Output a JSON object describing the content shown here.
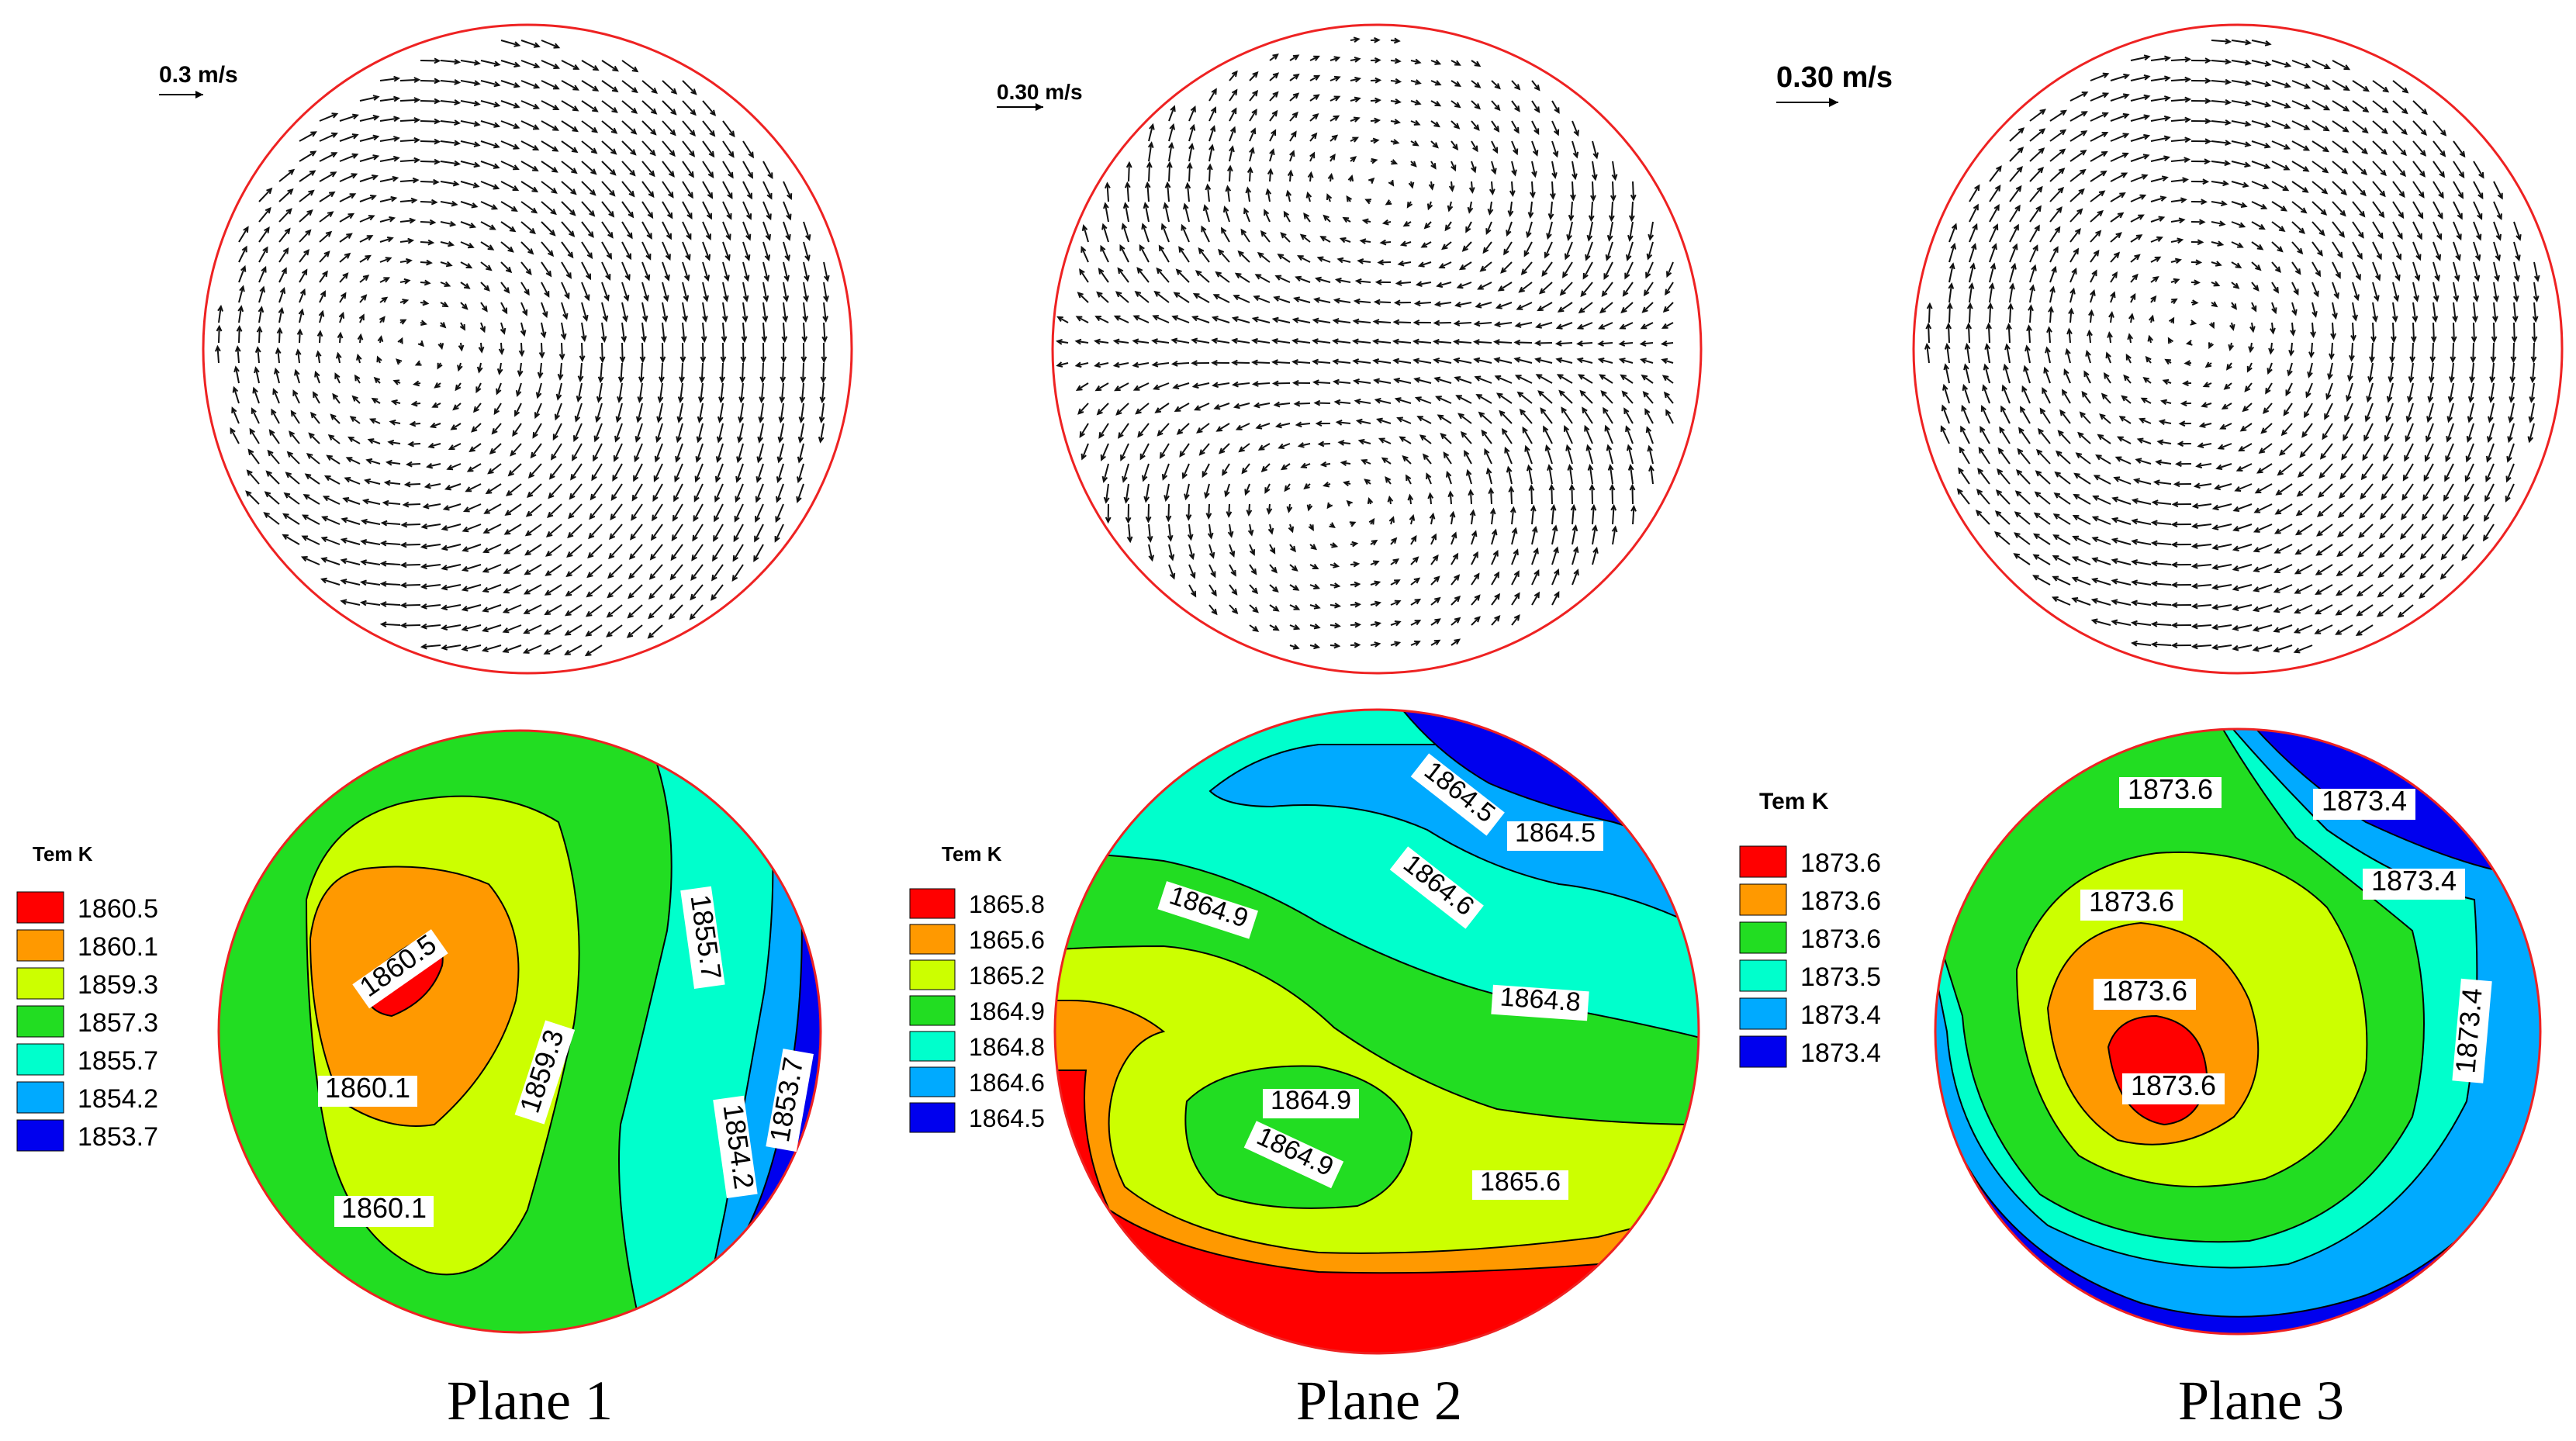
{
  "planes": [
    {
      "caption": "Plane 1",
      "velocity_scale": "0.3 m/s",
      "legend_title": "Tem K",
      "legend_levels": [
        "1860.5",
        "1860.1",
        "1859.3",
        "1857.3",
        "1855.7",
        "1854.2",
        "1853.7"
      ],
      "contour_labels": [
        "1860.5",
        "1860.1",
        "1860.1",
        "1859.3",
        "1855.7",
        "1854.2",
        "1853.7"
      ],
      "flow": "single-vortex"
    },
    {
      "caption": "Plane 2",
      "velocity_scale": "0.30 m/s",
      "legend_title": "Tem K",
      "legend_levels": [
        "1865.8",
        "1865.6",
        "1865.2",
        "1864.9",
        "1864.8",
        "1864.6",
        "1864.5"
      ],
      "contour_labels": [
        "1864.5",
        "1864.5",
        "1864.6",
        "1864.9",
        "1864.8",
        "1864.9",
        "1864.9",
        "1865.6"
      ],
      "flow": "double-vortex"
    },
    {
      "caption": "Plane 3",
      "velocity_scale": "0.30 m/s",
      "legend_title": "Tem K",
      "legend_levels": [
        "1873.6",
        "1873.6",
        "1873.6",
        "1873.5",
        "1873.4",
        "1873.4"
      ],
      "contour_labels": [
        "1873.6",
        "1873.4",
        "1873.6",
        "1873.4",
        "1873.6",
        "1873.4",
        "1873.6"
      ],
      "flow": "single-vortex"
    }
  ],
  "colors": {
    "red": "#ff0000",
    "orange": "#ff9900",
    "yellow_green": "#ccff00",
    "green": "#22dd22",
    "cyan": "#00ffcc",
    "light_blue": "#00aaff",
    "blue": "#0000ee",
    "outline_red": "#ee2222"
  }
}
